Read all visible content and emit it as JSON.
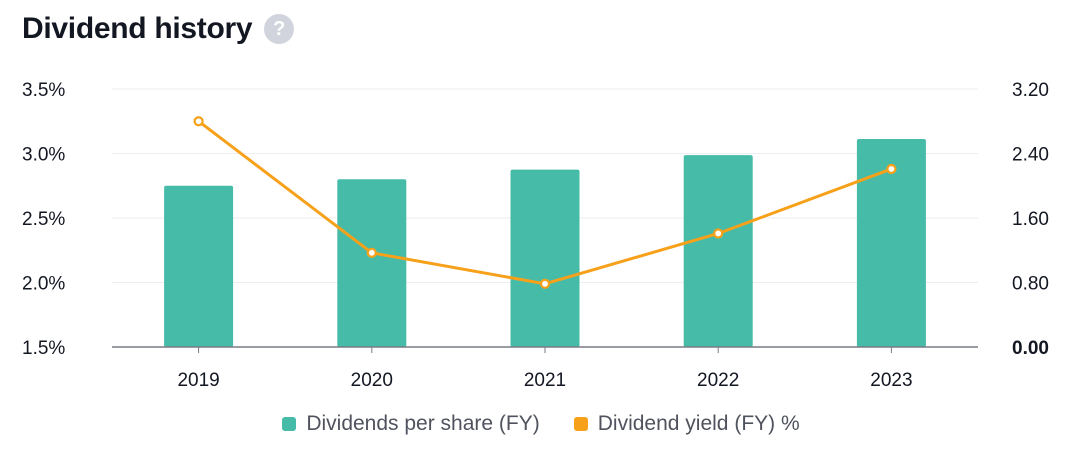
{
  "header": {
    "title": "Dividend history",
    "help_glyph": "?"
  },
  "colors": {
    "bars": "#45bba8",
    "line": "#f7a11b",
    "axis": "#787b86",
    "grid": "#eceef2",
    "text": "#131722"
  },
  "chart_data": {
    "type": "bar",
    "categories": [
      "2019",
      "2020",
      "2021",
      "2022",
      "2023"
    ],
    "series": [
      {
        "name": "Dividends per share (FY)",
        "type": "bar",
        "axis": "right",
        "values": [
          2.0,
          2.08,
          2.2,
          2.38,
          2.58
        ]
      },
      {
        "name": "Dividend yield (FY) %",
        "type": "line",
        "axis": "left",
        "values": [
          3.25,
          2.23,
          1.99,
          2.38,
          2.88
        ]
      }
    ],
    "left_axis": {
      "ticks": [
        "3.5%",
        "3.0%",
        "2.5%",
        "2.0%",
        "1.5%"
      ],
      "tick_values": [
        3.5,
        3.0,
        2.5,
        2.0,
        1.5
      ],
      "ylim": [
        1.5,
        3.5
      ]
    },
    "right_axis": {
      "ticks": [
        "3.20",
        "2.40",
        "1.60",
        "0.80",
        "0.00"
      ],
      "tick_values": [
        3.2,
        2.4,
        1.6,
        0.8,
        0.0
      ],
      "ylim": [
        0,
        3.2
      ]
    },
    "grid": true,
    "legend_position": "bottom"
  },
  "legend": [
    {
      "label": "Dividends per share (FY)",
      "color": "#45bba8"
    },
    {
      "label": "Dividend yield (FY) %",
      "color": "#f7a11b"
    }
  ]
}
